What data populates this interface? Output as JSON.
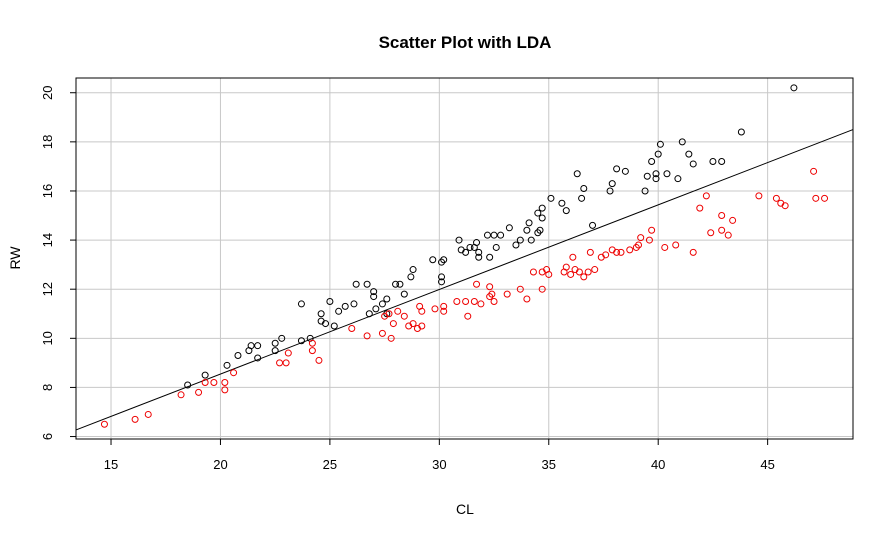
{
  "chart_data": {
    "type": "scatter",
    "title": "Scatter Plot with LDA",
    "xlabel": "CL",
    "ylabel": "RW",
    "xlim": [
      13.4,
      48.9
    ],
    "ylim": [
      5.9,
      20.6
    ],
    "x_ticks": [
      15,
      20,
      25,
      30,
      35,
      40,
      45
    ],
    "y_ticks": [
      6,
      8,
      10,
      12,
      14,
      16,
      18,
      20
    ],
    "x_tick_labels": [
      "15",
      "20",
      "25",
      "30",
      "35",
      "40",
      "45"
    ],
    "y_tick_labels": [
      "6",
      "8",
      "10",
      "12",
      "14",
      "16",
      "18",
      "20"
    ],
    "grid": true,
    "decision_line": {
      "x": [
        13.4,
        48.9
      ],
      "y": [
        6.27,
        18.5
      ],
      "color": "#000000"
    },
    "series": [
      {
        "color": "#000000",
        "points": [
          [
            18.5,
            8.1
          ],
          [
            19.3,
            8.5
          ],
          [
            20.3,
            8.9
          ],
          [
            20.8,
            9.3
          ],
          [
            21.3,
            9.5
          ],
          [
            21.4,
            9.7
          ],
          [
            21.7,
            9.7
          ],
          [
            21.7,
            9.2
          ],
          [
            22.5,
            9.8
          ],
          [
            22.5,
            9.5
          ],
          [
            22.8,
            10.0
          ],
          [
            23.7,
            11.4
          ],
          [
            23.7,
            9.9
          ],
          [
            24.1,
            10.0
          ],
          [
            24.6,
            11.0
          ],
          [
            24.6,
            10.7
          ],
          [
            24.8,
            10.6
          ],
          [
            25.0,
            11.5
          ],
          [
            25.2,
            10.5
          ],
          [
            25.4,
            11.1
          ],
          [
            25.7,
            11.3
          ],
          [
            26.1,
            11.4
          ],
          [
            26.2,
            12.2
          ],
          [
            26.7,
            12.2
          ],
          [
            26.8,
            11.0
          ],
          [
            27.0,
            11.7
          ],
          [
            27.0,
            11.9
          ],
          [
            27.1,
            11.2
          ],
          [
            27.4,
            11.4
          ],
          [
            27.6,
            11.0
          ],
          [
            27.6,
            11.6
          ],
          [
            28.0,
            12.2
          ],
          [
            28.2,
            12.2
          ],
          [
            28.4,
            11.8
          ],
          [
            28.7,
            12.5
          ],
          [
            28.8,
            12.8
          ],
          [
            29.7,
            13.2
          ],
          [
            30.1,
            13.1
          ],
          [
            30.2,
            13.2
          ],
          [
            30.1,
            12.5
          ],
          [
            30.1,
            12.3
          ],
          [
            30.9,
            14.0
          ],
          [
            31.0,
            13.6
          ],
          [
            31.2,
            13.5
          ],
          [
            31.4,
            13.7
          ],
          [
            31.6,
            13.7
          ],
          [
            31.7,
            13.9
          ],
          [
            31.8,
            13.5
          ],
          [
            31.8,
            13.3
          ],
          [
            32.2,
            14.2
          ],
          [
            32.3,
            13.3
          ],
          [
            32.5,
            14.2
          ],
          [
            32.6,
            13.7
          ],
          [
            32.8,
            14.2
          ],
          [
            33.2,
            14.5
          ],
          [
            33.5,
            13.8
          ],
          [
            33.7,
            14.0
          ],
          [
            34.0,
            14.4
          ],
          [
            34.1,
            14.7
          ],
          [
            34.2,
            14.0
          ],
          [
            34.5,
            14.3
          ],
          [
            34.6,
            14.4
          ],
          [
            34.5,
            15.1
          ],
          [
            34.7,
            14.9
          ],
          [
            34.7,
            15.3
          ],
          [
            35.1,
            15.7
          ],
          [
            35.6,
            15.5
          ],
          [
            35.8,
            15.2
          ],
          [
            36.3,
            16.7
          ],
          [
            36.5,
            15.7
          ],
          [
            36.6,
            16.1
          ],
          [
            37.0,
            14.6
          ],
          [
            37.8,
            16.0
          ],
          [
            37.9,
            16.3
          ],
          [
            38.1,
            16.9
          ],
          [
            38.5,
            16.8
          ],
          [
            39.4,
            16.0
          ],
          [
            39.5,
            16.6
          ],
          [
            39.7,
            17.2
          ],
          [
            39.9,
            16.5
          ],
          [
            39.9,
            16.7
          ],
          [
            40.0,
            17.5
          ],
          [
            40.1,
            17.9
          ],
          [
            40.4,
            16.7
          ],
          [
            40.9,
            16.5
          ],
          [
            41.1,
            18.0
          ],
          [
            41.4,
            17.5
          ],
          [
            41.6,
            17.1
          ],
          [
            42.5,
            17.2
          ],
          [
            42.9,
            17.2
          ],
          [
            43.8,
            18.4
          ],
          [
            46.2,
            20.2
          ]
        ]
      },
      {
        "color": "#ee0000",
        "points": [
          [
            14.7,
            6.5
          ],
          [
            16.1,
            6.7
          ],
          [
            16.7,
            6.9
          ],
          [
            18.2,
            7.7
          ],
          [
            19.0,
            7.8
          ],
          [
            19.3,
            8.2
          ],
          [
            19.7,
            8.2
          ],
          [
            20.2,
            7.9
          ],
          [
            20.2,
            8.2
          ],
          [
            20.6,
            8.6
          ],
          [
            22.7,
            9.0
          ],
          [
            23.0,
            9.0
          ],
          [
            23.1,
            9.4
          ],
          [
            24.2,
            9.5
          ],
          [
            24.2,
            9.8
          ],
          [
            24.5,
            9.1
          ],
          [
            26.0,
            10.4
          ],
          [
            26.7,
            10.1
          ],
          [
            27.4,
            10.2
          ],
          [
            27.5,
            10.9
          ],
          [
            27.7,
            11.0
          ],
          [
            27.8,
            10.0
          ],
          [
            27.9,
            10.6
          ],
          [
            28.1,
            11.1
          ],
          [
            28.4,
            10.9
          ],
          [
            28.6,
            10.5
          ],
          [
            28.8,
            10.6
          ],
          [
            29.0,
            10.4
          ],
          [
            29.1,
            11.3
          ],
          [
            29.2,
            11.1
          ],
          [
            29.2,
            10.5
          ],
          [
            29.8,
            11.2
          ],
          [
            30.2,
            11.3
          ],
          [
            30.2,
            11.1
          ],
          [
            30.8,
            11.5
          ],
          [
            31.2,
            11.5
          ],
          [
            31.3,
            10.9
          ],
          [
            31.6,
            11.5
          ],
          [
            31.7,
            12.2
          ],
          [
            31.9,
            11.4
          ],
          [
            32.3,
            11.7
          ],
          [
            32.3,
            12.1
          ],
          [
            32.4,
            11.8
          ],
          [
            32.5,
            11.5
          ],
          [
            33.1,
            11.8
          ],
          [
            33.7,
            12.0
          ],
          [
            34.0,
            11.6
          ],
          [
            34.3,
            12.7
          ],
          [
            34.7,
            12.0
          ],
          [
            34.7,
            12.7
          ],
          [
            34.9,
            12.8
          ],
          [
            35.0,
            12.6
          ],
          [
            35.7,
            12.7
          ],
          [
            35.8,
            12.9
          ],
          [
            36.0,
            12.6
          ],
          [
            36.1,
            13.3
          ],
          [
            36.2,
            12.8
          ],
          [
            36.4,
            12.7
          ],
          [
            36.6,
            12.5
          ],
          [
            36.8,
            12.7
          ],
          [
            36.9,
            13.5
          ],
          [
            37.1,
            12.8
          ],
          [
            37.4,
            13.3
          ],
          [
            37.6,
            13.4
          ],
          [
            37.9,
            13.6
          ],
          [
            38.1,
            13.5
          ],
          [
            38.3,
            13.5
          ],
          [
            38.7,
            13.6
          ],
          [
            39.0,
            13.7
          ],
          [
            39.1,
            13.8
          ],
          [
            39.2,
            14.1
          ],
          [
            39.6,
            14.0
          ],
          [
            39.7,
            14.4
          ],
          [
            40.3,
            13.7
          ],
          [
            40.8,
            13.8
          ],
          [
            41.6,
            13.5
          ],
          [
            41.9,
            15.3
          ],
          [
            42.2,
            15.8
          ],
          [
            42.4,
            14.3
          ],
          [
            42.9,
            14.4
          ],
          [
            42.9,
            15.0
          ],
          [
            43.2,
            14.2
          ],
          [
            43.4,
            14.8
          ],
          [
            44.6,
            15.8
          ],
          [
            45.4,
            15.7
          ],
          [
            45.6,
            15.5
          ],
          [
            45.8,
            15.4
          ],
          [
            47.1,
            16.8
          ],
          [
            47.2,
            15.7
          ],
          [
            47.6,
            15.7
          ]
        ]
      }
    ]
  }
}
